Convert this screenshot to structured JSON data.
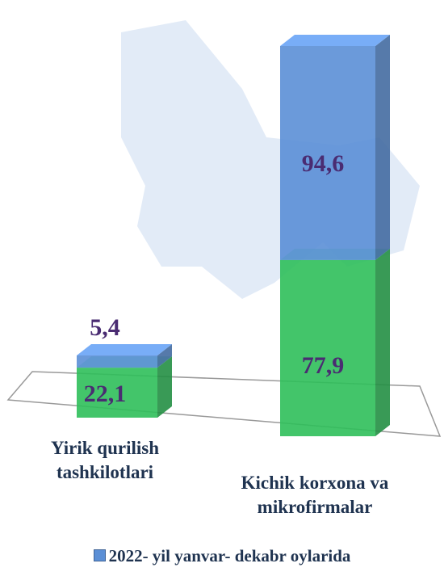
{
  "chart_data": {
    "type": "bar",
    "stacked": true,
    "categories": [
      "Yirik qurilish tashkilotlari",
      "Kichik korxona va mikrofirmalar"
    ],
    "series": [
      {
        "color": "#2fbf5a",
        "values": [
          22.1,
          77.9
        ],
        "value_labels": [
          "22,1",
          "77,9"
        ]
      },
      {
        "name": "2022- yil yanvar- dekabr oylarida",
        "color": "#5b8fd6",
        "values": [
          5.4,
          94.6
        ],
        "value_labels": [
          "5,4",
          "94,6"
        ]
      }
    ],
    "legend": "bottom"
  }
}
